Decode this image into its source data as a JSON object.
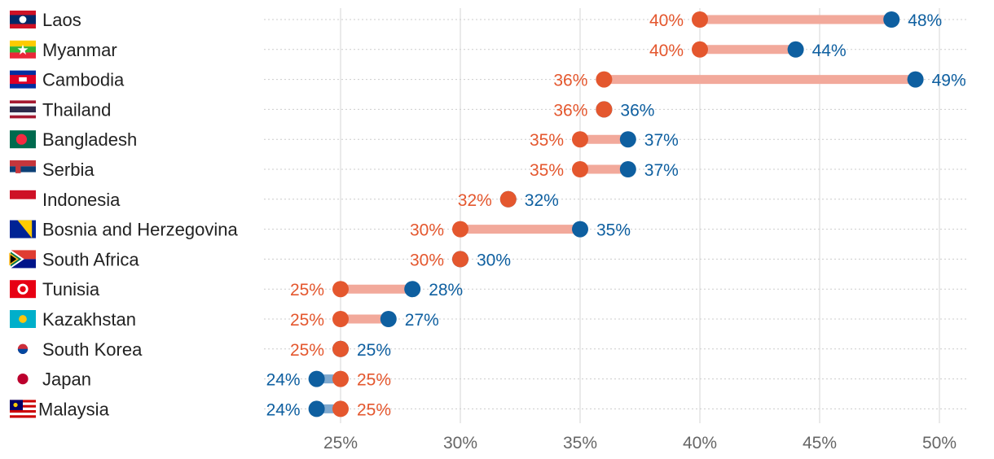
{
  "chart_data": {
    "type": "dumbbell",
    "title": "",
    "xlabel": "",
    "ylabel": "",
    "xlim": [
      22,
      51
    ],
    "x_ticks": [
      25,
      30,
      35,
      40,
      45,
      50
    ],
    "x_tick_labels": [
      "25%",
      "30%",
      "35%",
      "40%",
      "45%",
      "50%"
    ],
    "grid": true,
    "colors": {
      "orange": "#E4572E",
      "blue": "#0E5FA0",
      "orange_bar": "#F2A99B",
      "blue_bar": "#7FA9CF"
    },
    "rows": [
      {
        "country": "Laos",
        "flag": "laos",
        "orange": 40,
        "orange_label": "40%",
        "blue": 48,
        "blue_label": "48%"
      },
      {
        "country": "Myanmar",
        "flag": "myanmar",
        "orange": 40,
        "orange_label": "40%",
        "blue": 44,
        "blue_label": "44%"
      },
      {
        "country": "Cambodia",
        "flag": "cambodia",
        "orange": 36,
        "orange_label": "36%",
        "blue": 49,
        "blue_label": "49%"
      },
      {
        "country": "Thailand",
        "flag": "thailand",
        "orange": 36,
        "orange_label": "36%",
        "blue": 36,
        "blue_label": "36%"
      },
      {
        "country": "Bangladesh",
        "flag": "bangladesh",
        "orange": 35,
        "orange_label": "35%",
        "blue": 37,
        "blue_label": "37%"
      },
      {
        "country": "Serbia",
        "flag": "serbia",
        "orange": 35,
        "orange_label": "35%",
        "blue": 37,
        "blue_label": "37%"
      },
      {
        "country": "Indonesia",
        "flag": "indonesia",
        "orange": 32,
        "orange_label": "32%",
        "blue": 32,
        "blue_label": "32%"
      },
      {
        "country": "Bosnia and Herzegovina",
        "flag": "bosnia",
        "orange": 30,
        "orange_label": "30%",
        "blue": 35,
        "blue_label": "35%"
      },
      {
        "country": "South Africa",
        "flag": "south-africa",
        "orange": 30,
        "orange_label": "30%",
        "blue": 30,
        "blue_label": "30%"
      },
      {
        "country": "Tunisia",
        "flag": "tunisia",
        "orange": 25,
        "orange_label": "25%",
        "blue": 28,
        "blue_label": "28%"
      },
      {
        "country": "Kazakhstan",
        "flag": "kazakhstan",
        "orange": 25,
        "orange_label": "25%",
        "blue": 27,
        "blue_label": "27%"
      },
      {
        "country": "South Korea",
        "flag": "south-korea",
        "orange": 25,
        "orange_label": "25%",
        "blue": 25,
        "blue_label": "25%"
      },
      {
        "country": "Japan",
        "flag": "japan",
        "orange": 25,
        "orange_label": "25%",
        "blue": 24,
        "blue_label": "24%"
      },
      {
        "country": "Malaysia",
        "flag": "malaysia",
        "orange": 25,
        "orange_label": "25%",
        "blue": 24,
        "blue_label": "24%"
      }
    ]
  }
}
